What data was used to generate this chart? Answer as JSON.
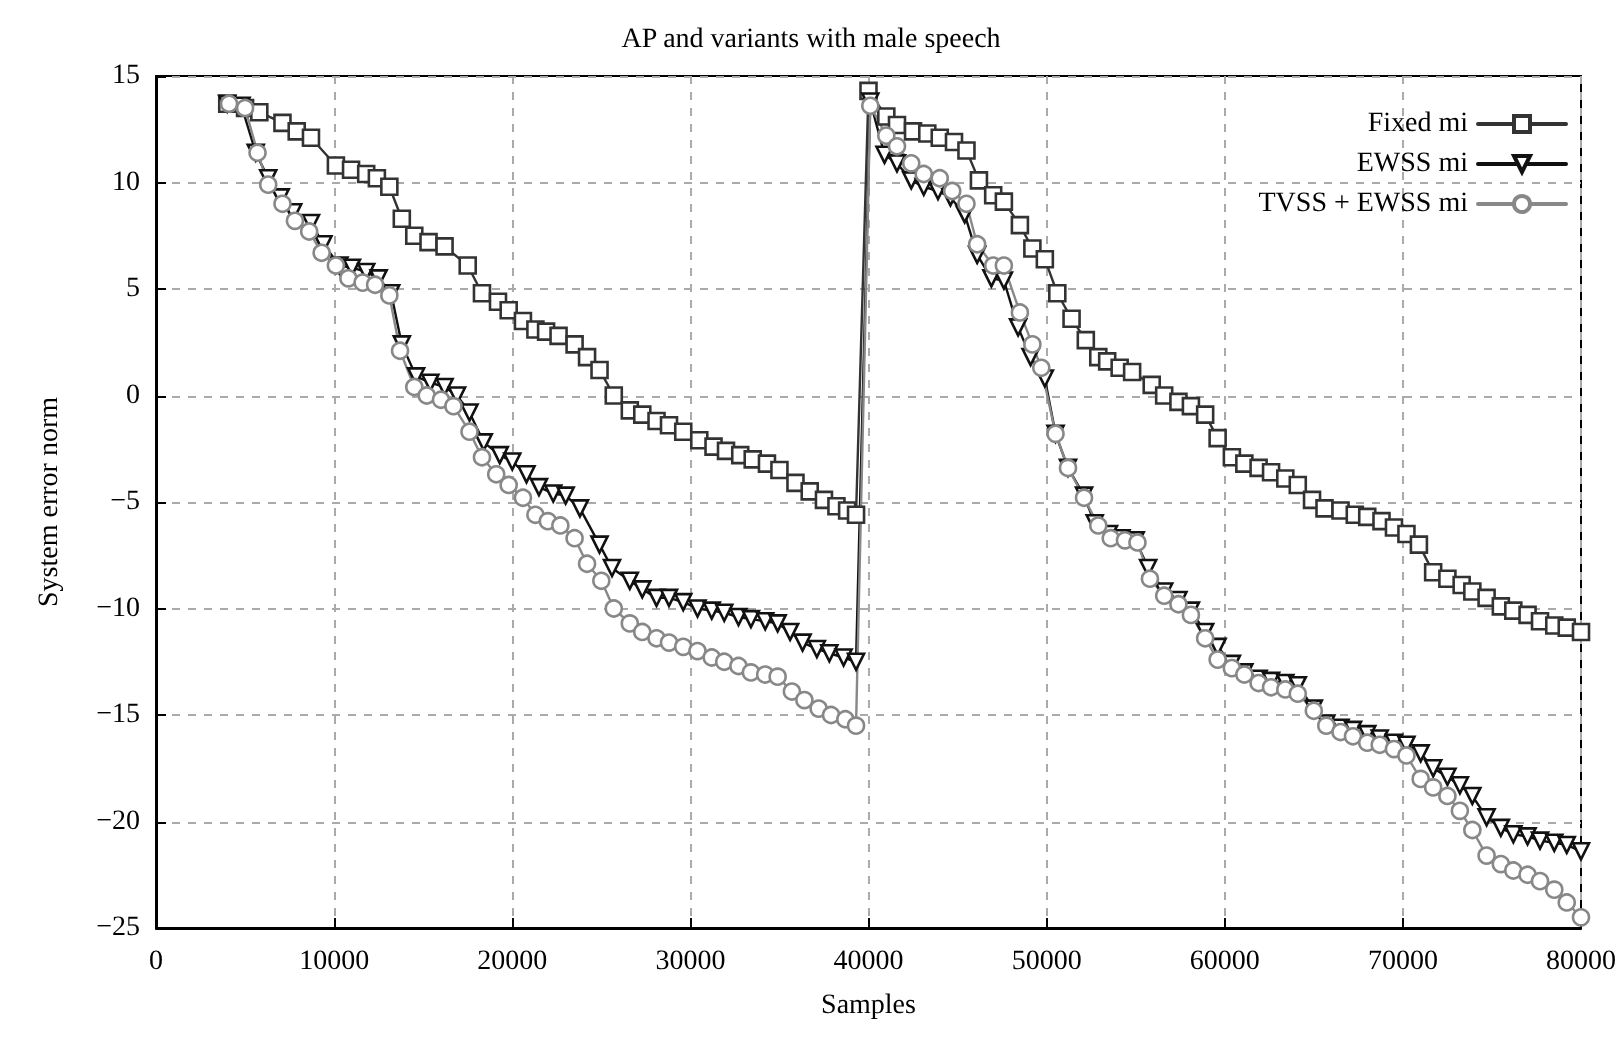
{
  "chart_data": {
    "type": "line",
    "title": "AP and variants with male speech",
    "xlabel": "Samples",
    "ylabel": "System error norm",
    "xlim": [
      0,
      80000
    ],
    "xticks": [
      0,
      10000,
      20000,
      30000,
      40000,
      50000,
      60000,
      70000,
      80000
    ],
    "ylim": [
      -25,
      15
    ],
    "yticks": [
      -25,
      -20,
      -15,
      -10,
      -5,
      0,
      5,
      10,
      15
    ],
    "grid": true,
    "legend": "top right",
    "line_style": "solid",
    "series": [
      {
        "name": "Fixed mi",
        "color": "#333333",
        "marker": "square",
        "x": [
          4000,
          5000,
          5800,
          7100,
          7900,
          8700,
          10100,
          10950,
          11800,
          12400,
          13100,
          13800,
          14500,
          15300,
          16200,
          17500,
          18300,
          19200,
          19800,
          20600,
          21300,
          21900,
          22600,
          23500,
          24200,
          24900,
          25700,
          26600,
          27300,
          28100,
          28800,
          29600,
          30500,
          31300,
          32000,
          32800,
          33500,
          34300,
          35000,
          35900,
          36700,
          37500,
          38200,
          38800,
          39300,
          40000,
          41000,
          41600,
          42500,
          43300,
          44000,
          44800,
          45500,
          46200,
          47000,
          47600,
          48500,
          49200,
          49900,
          50600,
          51400,
          52200,
          52900,
          53400,
          54100,
          54800,
          55900,
          56600,
          57400,
          58100,
          58900,
          59600,
          60400,
          61100,
          61900,
          62600,
          63400,
          64100,
          64900,
          65600,
          66500,
          67300,
          68000,
          68800,
          69500,
          70200,
          70900,
          71700,
          72500,
          73300,
          73900,
          74700,
          75500,
          76200,
          77000,
          77700,
          78500,
          79200,
          80000
        ],
        "values": [
          13.7,
          13.5,
          13.3,
          12.8,
          12.4,
          12.1,
          10.8,
          10.6,
          10.4,
          10.2,
          9.8,
          8.3,
          7.5,
          7.2,
          7.0,
          6.1,
          4.8,
          4.4,
          4.0,
          3.5,
          3.1,
          3.0,
          2.8,
          2.4,
          1.8,
          1.2,
          0.0,
          -0.7,
          -0.9,
          -1.2,
          -1.4,
          -1.7,
          -2.1,
          -2.4,
          -2.6,
          -2.8,
          -3.0,
          -3.2,
          -3.5,
          -4.1,
          -4.5,
          -4.9,
          -5.2,
          -5.4,
          -5.6,
          14.3,
          13.1,
          12.7,
          12.4,
          12.3,
          12.1,
          11.9,
          11.5,
          10.1,
          9.4,
          9.1,
          8.0,
          6.9,
          6.4,
          4.8,
          3.6,
          2.6,
          1.8,
          1.6,
          1.3,
          1.1,
          0.5,
          0.0,
          -0.3,
          -0.5,
          -0.9,
          -2.0,
          -2.9,
          -3.2,
          -3.4,
          -3.6,
          -3.9,
          -4.2,
          -4.9,
          -5.3,
          -5.4,
          -5.6,
          -5.7,
          -5.9,
          -6.2,
          -6.5,
          -7.0,
          -8.3,
          -8.6,
          -8.9,
          -9.2,
          -9.5,
          -9.9,
          -10.1,
          -10.3,
          -10.6,
          -10.8,
          -10.9,
          -11.1
        ]
      },
      {
        "name": "EWSS mi",
        "color": "#111111",
        "marker": "triangle",
        "x": [
          4000,
          4800,
          5600,
          6300,
          7000,
          7700,
          8700,
          9400,
          10300,
          11000,
          11800,
          12500,
          13200,
          13800,
          14600,
          15400,
          16200,
          16900,
          17600,
          18400,
          19300,
          20000,
          20800,
          21500,
          22300,
          23000,
          23800,
          24900,
          25600,
          26600,
          27300,
          28100,
          28800,
          29600,
          30400,
          31200,
          31900,
          32700,
          33400,
          34200,
          34900,
          35600,
          36300,
          37100,
          37800,
          38600,
          39300,
          40100,
          40900,
          41600,
          42400,
          43100,
          43900,
          44600,
          45400,
          46100,
          46900,
          47600,
          48400,
          49100,
          49900,
          50500,
          51200,
          52100,
          52700,
          53500,
          54200,
          55000,
          55700,
          56600,
          57400,
          58100,
          58900,
          59600,
          60400,
          61100,
          61900,
          62600,
          63400,
          64100,
          65000,
          65700,
          66500,
          67200,
          68000,
          68700,
          69500,
          70200,
          71000,
          71700,
          72500,
          73200,
          73900,
          74700,
          75500,
          76200,
          77000,
          77700,
          78500,
          79200,
          80000
        ],
        "values": [
          13.7,
          13.6,
          11.4,
          10.2,
          9.3,
          8.6,
          8.1,
          7.1,
          6.1,
          6.0,
          5.8,
          5.5,
          4.8,
          2.4,
          0.9,
          0.6,
          0.4,
          0.0,
          -0.8,
          -2.2,
          -2.8,
          -3.1,
          -3.7,
          -4.3,
          -4.6,
          -4.7,
          -5.3,
          -7.0,
          -8.1,
          -8.7,
          -9.1,
          -9.5,
          -9.5,
          -9.7,
          -10.0,
          -10.1,
          -10.2,
          -10.4,
          -10.5,
          -10.6,
          -10.7,
          -11.1,
          -11.6,
          -11.9,
          -12.1,
          -12.3,
          -12.5,
          13.8,
          11.3,
          10.9,
          10.1,
          9.8,
          9.6,
          9.3,
          8.5,
          6.6,
          5.5,
          5.4,
          3.2,
          1.8,
          0.8,
          -1.8,
          -3.4,
          -4.7,
          -6.0,
          -6.5,
          -6.7,
          -6.8,
          -8.1,
          -9.2,
          -9.6,
          -10.1,
          -11.1,
          -11.8,
          -12.6,
          -13.0,
          -13.3,
          -13.4,
          -13.5,
          -13.6,
          -14.7,
          -15.4,
          -15.6,
          -15.7,
          -15.9,
          -16.1,
          -16.3,
          -16.4,
          -16.8,
          -17.5,
          -17.9,
          -18.3,
          -18.8,
          -19.8,
          -20.3,
          -20.6,
          -20.7,
          -20.9,
          -21.0,
          -21.1,
          -21.4
        ]
      },
      {
        "name": "TVSS + EWSS mi",
        "color": "#888888",
        "marker": "circle",
        "x": [
          4100,
          5000,
          5700,
          6300,
          7100,
          7800,
          8600,
          9300,
          10100,
          10800,
          11600,
          12300,
          13100,
          13700,
          14500,
          15200,
          16000,
          16700,
          17600,
          18300,
          19100,
          19800,
          20600,
          21300,
          22000,
          22700,
          23500,
          24200,
          25000,
          25700,
          26600,
          27300,
          28100,
          28800,
          29600,
          30400,
          31200,
          31900,
          32700,
          33400,
          34200,
          34900,
          35700,
          36400,
          37200,
          37900,
          38700,
          39300,
          40100,
          41000,
          41600,
          42400,
          43100,
          44000,
          44700,
          45500,
          46100,
          47000,
          47600,
          48500,
          49200,
          49700,
          50500,
          51200,
          52100,
          52900,
          53600,
          54400,
          55100,
          55800,
          56600,
          57400,
          58100,
          58900,
          59600,
          60400,
          61100,
          61900,
          62600,
          63400,
          64100,
          65000,
          65700,
          66500,
          67200,
          68000,
          68700,
          69500,
          70200,
          71000,
          71700,
          72500,
          73200,
          73900,
          74700,
          75500,
          76200,
          77000,
          77700,
          78500,
          79200,
          80000
        ],
        "values": [
          13.7,
          13.5,
          11.4,
          9.9,
          9.0,
          8.2,
          7.7,
          6.7,
          6.1,
          5.5,
          5.3,
          5.2,
          4.7,
          2.1,
          0.4,
          0.0,
          -0.2,
          -0.5,
          -1.7,
          -2.9,
          -3.7,
          -4.2,
          -4.8,
          -5.6,
          -5.9,
          -6.1,
          -6.7,
          -7.9,
          -8.7,
          -10.0,
          -10.7,
          -11.1,
          -11.4,
          -11.6,
          -11.8,
          -12.0,
          -12.3,
          -12.5,
          -12.7,
          -13.0,
          -13.1,
          -13.2,
          -13.9,
          -14.3,
          -14.7,
          -15.0,
          -15.2,
          -15.5,
          13.6,
          12.2,
          11.7,
          10.9,
          10.4,
          10.2,
          9.6,
          9.0,
          7.1,
          6.1,
          6.1,
          3.9,
          2.4,
          1.3,
          -1.8,
          -3.4,
          -4.8,
          -6.1,
          -6.7,
          -6.8,
          -6.9,
          -8.6,
          -9.4,
          -9.8,
          -10.3,
          -11.4,
          -12.4,
          -12.8,
          -13.1,
          -13.5,
          -13.7,
          -13.8,
          -14.0,
          -14.8,
          -15.5,
          -15.8,
          -16.0,
          -16.3,
          -16.4,
          -16.6,
          -16.9,
          -18.0,
          -18.4,
          -18.8,
          -19.5,
          -20.4,
          -21.6,
          -22.0,
          -22.3,
          -22.5,
          -22.8,
          -23.2,
          -23.8,
          -24.5
        ]
      }
    ]
  }
}
